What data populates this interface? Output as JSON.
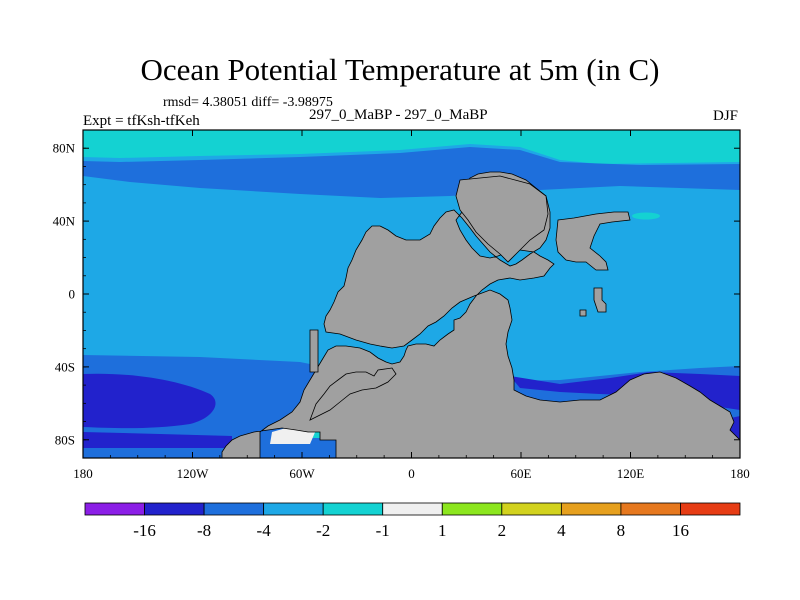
{
  "chart_data": {
    "type": "map-contour",
    "title": "Ocean Potential Temperature at 5m (in C)",
    "stats_line": "rmsd= 4.38051 diff= -3.98975",
    "subtitle": "297_0_MaBP - 297_0_MaBP",
    "left_label": "Expt = tfKsh-tfKeh",
    "right_label": "DJF",
    "x_axis": {
      "range": [
        -180,
        180
      ],
      "ticks": [
        {
          "value": -180,
          "label": "180"
        },
        {
          "value": -120,
          "label": "120W"
        },
        {
          "value": -60,
          "label": "60W"
        },
        {
          "value": 0,
          "label": "0"
        },
        {
          "value": 60,
          "label": "60E"
        },
        {
          "value": 120,
          "label": "120E"
        },
        {
          "value": 180,
          "label": "180"
        }
      ]
    },
    "y_axis": {
      "range": [
        -90,
        90
      ],
      "ticks": [
        {
          "value": 80,
          "label": "80N"
        },
        {
          "value": 40,
          "label": "40N"
        },
        {
          "value": 0,
          "label": "0"
        },
        {
          "value": -40,
          "label": "40S"
        },
        {
          "value": -80,
          "label": "80S"
        }
      ]
    },
    "colorbar": {
      "colors": [
        "#8b1ee6",
        "#2222cc",
        "#1e6fdc",
        "#1ea8e6",
        "#14d2d2",
        "#f0f0f0",
        "#8ce61e",
        "#d2d21e",
        "#e6a01e",
        "#e6781e",
        "#e63c14"
      ],
      "labels": [
        "-16",
        "-8",
        "-4",
        "-2",
        "-1",
        "1",
        "2",
        "4",
        "8",
        "16"
      ]
    },
    "fill_colors": {
      "land": "#a0a0a0",
      "level_neg2_to_neg1": "#14d2d2",
      "level_neg4_to_neg2": "#1ea8e6",
      "level_neg8_to_neg4": "#1e6fdc",
      "level_neg16_to_neg8": "#2222cc",
      "level_neg1_to_1": "#f0f0f0"
    }
  }
}
